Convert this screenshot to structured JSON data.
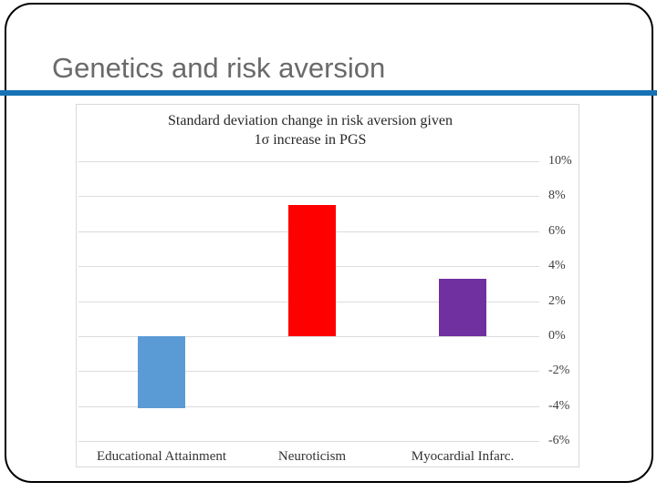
{
  "slide": {
    "title": "Genetics and risk aversion",
    "title_color": "#6A6A6A",
    "accent_rule_color": "#1772B5",
    "border_color": "#000000",
    "background": "#FFFFFF"
  },
  "chart": {
    "title_line1": "Standard deviation change in risk aversion given",
    "title_line2": "1σ increase in PGS"
  },
  "chart_data": {
    "type": "bar",
    "title": "Standard deviation change in risk aversion given 1σ increase in PGS",
    "categories": [
      "Educational Attainment",
      "Neuroticism",
      "Myocardial Infarc."
    ],
    "values": [
      -4.1,
      7.5,
      3.3
    ],
    "bar_colors": [
      "#5B9BD5",
      "#FF0000",
      "#7030A0"
    ],
    "xlabel": "",
    "ylabel": "",
    "ylim": [
      -6,
      10
    ],
    "ytick_step": 2,
    "ytick_labels_top_to_bottom": [
      "10%",
      "8%",
      "6%",
      "4%",
      "2%",
      "0%",
      "-2%",
      "-4%",
      "-6%"
    ],
    "ytick_side": "right",
    "grid": true,
    "gridline_color": "#DCDCDC",
    "panel_border_color": "#D9D9D9",
    "legend": "none",
    "value_unit": "percent"
  }
}
